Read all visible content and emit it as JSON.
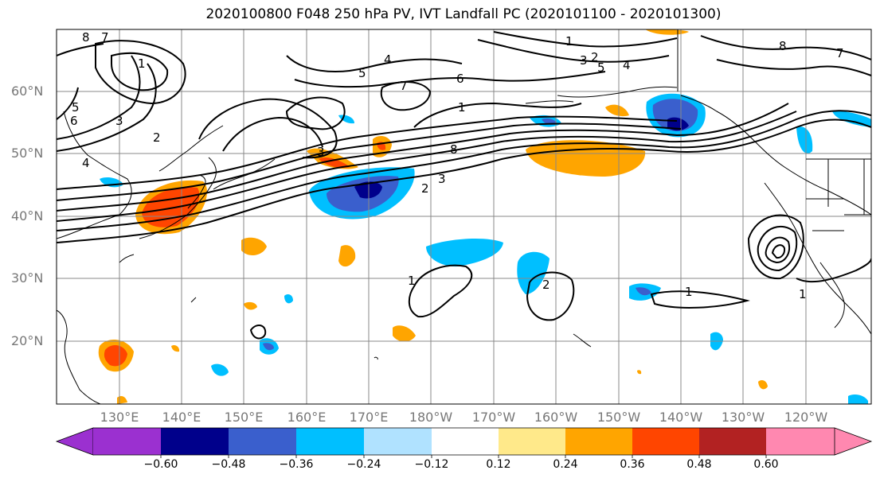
{
  "title": "2020100800 F048 250 hPa PV, IVT Landfall PC (2020101100 - 2020101300)",
  "lat_labels": [
    "60°N",
    "50°N",
    "40°N",
    "30°N",
    "20°N"
  ],
  "lon_labels": [
    "130°E",
    "140°E",
    "150°E",
    "160°E",
    "170°E",
    "180°W",
    "170°W",
    "160°W",
    "150°W",
    "140°W",
    "130°W",
    "120°W"
  ],
  "colorbar": {
    "tick_labels": [
      "−0.60",
      "−0.48",
      "−0.36",
      "−0.24",
      "−0.12",
      "0.12",
      "0.24",
      "0.36",
      "0.48",
      "0.60"
    ],
    "colors": [
      "#9b30d0",
      "#00008b",
      "#3a5fcd",
      "#00bfff",
      "#b0e2ff",
      "#ffffff",
      "#ffe98a",
      "#ffa500",
      "#ff4500",
      "#b22222",
      "#ff88b0"
    ]
  },
  "contour_labels": [
    "8",
    "7",
    "1",
    "2",
    "3",
    "5",
    "4",
    "6",
    "8",
    "7",
    "1",
    "2",
    "3",
    "4",
    "5",
    "6",
    "7",
    "8",
    "2",
    "3",
    "1",
    "1",
    "2",
    "1",
    "1",
    "3",
    "4",
    "5"
  ],
  "colors": {
    "grid": "#888888",
    "contour": "#000000",
    "coast": "#000000"
  }
}
